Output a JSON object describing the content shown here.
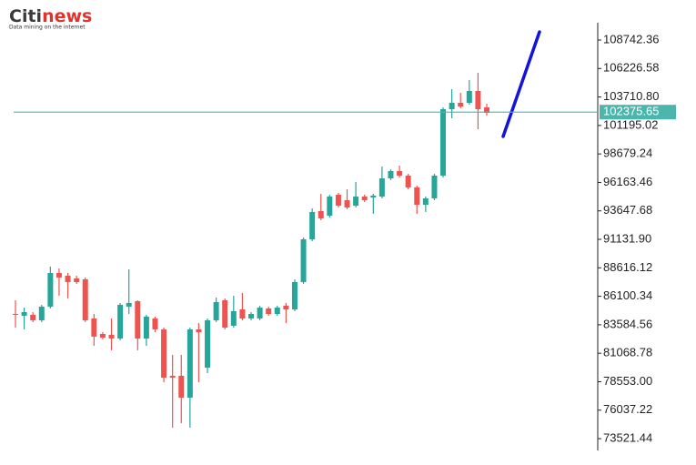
{
  "logo": {
    "name_part1": "Citi",
    "name_part2": "news",
    "tagline": "Data mining on the internet"
  },
  "chart_data": {
    "type": "candlestick",
    "up_color": "#26a69a",
    "down_color": "#ef5350",
    "last_price": 102375.65,
    "last_price_color": "#4db6ac",
    "ylim": [
      72480,
      110270
    ],
    "yticks": [
      108742.36,
      106226.58,
      {
        "value": 103710.8,
        "label": "103710.80"
      },
      101195.02,
      98679.24,
      96163.46,
      93647.68,
      {
        "value": 91131.9,
        "label": "91131.90"
      },
      88616.12,
      86100.34,
      83584.56,
      81068.78,
      {
        "value": 78553,
        "label": "78553.00"
      },
      76037.22,
      73521.44
    ],
    "open": [
      84542,
      84381,
      84462,
      83980,
      85185,
      88160,
      87918,
      87677,
      87597,
      84140,
      82774,
      82694,
      82372,
      85185,
      85668,
      82372,
      84140,
      83176,
      79075,
      79075,
      77145,
      83176,
      79798,
      83980,
      85748,
      83497,
      84944,
      84140,
      84140,
      85024,
      84542,
      85266,
      84944,
      87356,
      91135,
      93627,
      93225,
      95074,
      94592,
      94109,
      94913,
      94833,
      94913,
      96521,
      97164,
      96762,
      95717,
      94190,
      94753,
      96762,
      102632,
      103194,
      103194,
      104240,
      102792
    ],
    "high": [
      85748,
      85105,
      84703,
      85346,
      88723,
      88562,
      88160,
      87918,
      87758,
      84542,
      82935,
      84140,
      85507,
      88482,
      85748,
      84462,
      84301,
      83336,
      80924,
      80924,
      83336,
      83738,
      84140,
      85989,
      85908,
      86150,
      86391,
      84703,
      85266,
      85185,
      85266,
      85507,
      87597,
      91296,
      93869,
      95154,
      95074,
      95234,
      95556,
      96200,
      95074,
      95154,
      97566,
      97325,
      97647,
      96923,
      95878,
      94913,
      96923,
      102792,
      104400,
      104079,
      105204,
      105848,
      103114
    ],
    "low": [
      83336,
      83176,
      83819,
      83819,
      85024,
      86150,
      85908,
      87195,
      83819,
      81729,
      82292,
      81330,
      82212,
      84542,
      81330,
      81729,
      82935,
      78512,
      74492,
      74894,
      74492,
      78512,
      79316,
      83819,
      83176,
      83336,
      83980,
      83980,
      83980,
      84381,
      84381,
      83738,
      84783,
      87195,
      90974,
      92823,
      93064,
      93948,
      93788,
      93948,
      94431,
      93386,
      94753,
      96360,
      96601,
      95556,
      93386,
      93547,
      94592,
      96601,
      101828,
      102712,
      103034,
      100863,
      102069
    ],
    "close": [
      84462,
      84703,
      83980,
      85185,
      88160,
      87758,
      87356,
      87356,
      83980,
      82533,
      82453,
      82372,
      85346,
      85507,
      82372,
      84301,
      83176,
      78914,
      78914,
      77145,
      83176,
      82935,
      83980,
      85587,
      83336,
      84783,
      84140,
      84542,
      85105,
      84542,
      85105,
      84944,
      87356,
      91135,
      93547,
      92984,
      94913,
      94109,
      93948,
      94913,
      94592,
      94994,
      96521,
      97164,
      96762,
      95717,
      94190,
      94753,
      96762,
      102632,
      103194,
      102873,
      104240,
      102632,
      102310
    ]
  }
}
